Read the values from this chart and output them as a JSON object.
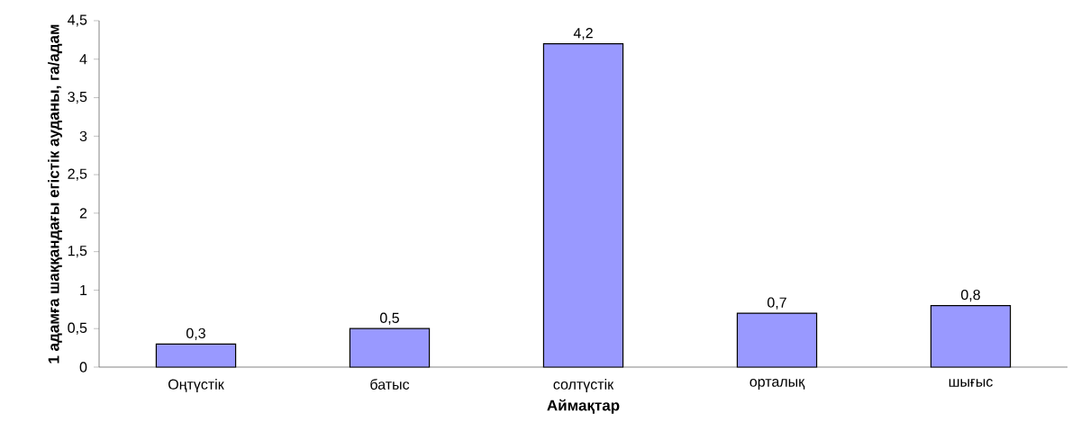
{
  "chart_data": {
    "type": "bar",
    "xlabel": "Аймақтар",
    "ylabel": "1 адамға шаққандағы егістік ауданы, га/адам",
    "categories": [
      "Оңтүстік",
      "батыс",
      "солтүстік",
      "орталық",
      "шығыс"
    ],
    "values": [
      0.3,
      0.5,
      4.2,
      0.7,
      0.8
    ],
    "value_labels": [
      "0,3",
      "0,5",
      "4,2",
      "0,7",
      "0,8"
    ],
    "color": "#9999ff",
    "ylim": [
      0,
      4.5
    ],
    "yticks": [
      0,
      {
        "value": 0.5,
        "label": "0,5"
      },
      1,
      {
        "value": 1.5,
        "label": "1,5"
      },
      2,
      {
        "value": 2.5,
        "label": "2,5"
      },
      3,
      {
        "value": 3.5,
        "label": "3,5"
      },
      4,
      {
        "value": 4.5,
        "label": "4,5"
      }
    ],
    "grid": false
  }
}
